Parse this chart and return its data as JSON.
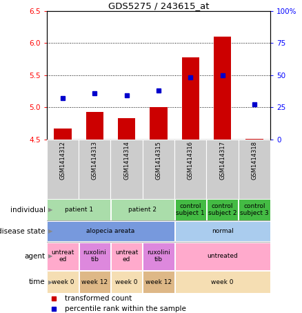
{
  "title": "GDS5275 / 243615_at",
  "samples": [
    "GSM1414312",
    "GSM1414313",
    "GSM1414314",
    "GSM1414315",
    "GSM1414316",
    "GSM1414317",
    "GSM1414318"
  ],
  "bar_values": [
    4.67,
    4.93,
    4.83,
    5.0,
    5.78,
    6.1,
    4.51
  ],
  "dot_values": [
    32,
    36,
    34,
    38,
    48,
    50,
    27
  ],
  "ylim_left": [
    4.5,
    6.5
  ],
  "ylim_right": [
    0,
    100
  ],
  "yticks_left": [
    4.5,
    5.0,
    5.5,
    6.0,
    6.5
  ],
  "yticks_right": [
    0,
    25,
    50,
    75,
    100
  ],
  "bar_color": "#cc0000",
  "dot_color": "#0000cc",
  "bar_bottom": 4.5,
  "grid_lines": [
    5.0,
    5.5,
    6.0
  ],
  "individual_data": [
    {
      "label": "patient 1",
      "span": [
        0,
        2
      ],
      "color": "#aaddaa"
    },
    {
      "label": "patient 2",
      "span": [
        2,
        4
      ],
      "color": "#aaddaa"
    },
    {
      "label": "control\nsubject 1",
      "span": [
        4,
        5
      ],
      "color": "#44bb44"
    },
    {
      "label": "control\nsubject 2",
      "span": [
        5,
        6
      ],
      "color": "#44bb44"
    },
    {
      "label": "control\nsubject 3",
      "span": [
        6,
        7
      ],
      "color": "#44bb44"
    }
  ],
  "disease_data": [
    {
      "label": "alopecia areata",
      "span": [
        0,
        4
      ],
      "color": "#7799dd"
    },
    {
      "label": "normal",
      "span": [
        4,
        7
      ],
      "color": "#aaccee"
    }
  ],
  "agent_data": [
    {
      "label": "untreat\ned",
      "span": [
        0,
        1
      ],
      "color": "#ffaacc"
    },
    {
      "label": "ruxolini\ntib",
      "span": [
        1,
        2
      ],
      "color": "#dd88dd"
    },
    {
      "label": "untreat\ned",
      "span": [
        2,
        3
      ],
      "color": "#ffaacc"
    },
    {
      "label": "ruxolini\ntib",
      "span": [
        3,
        4
      ],
      "color": "#dd88dd"
    },
    {
      "label": "untreated",
      "span": [
        4,
        7
      ],
      "color": "#ffaacc"
    }
  ],
  "time_data": [
    {
      "label": "week 0",
      "span": [
        0,
        1
      ],
      "color": "#f5deb3"
    },
    {
      "label": "week 12",
      "span": [
        1,
        2
      ],
      "color": "#deb887"
    },
    {
      "label": "week 0",
      "span": [
        2,
        3
      ],
      "color": "#f5deb3"
    },
    {
      "label": "week 12",
      "span": [
        3,
        4
      ],
      "color": "#deb887"
    },
    {
      "label": "week 0",
      "span": [
        4,
        7
      ],
      "color": "#f5deb3"
    }
  ],
  "legend_bar_label": "transformed count",
  "legend_dot_label": "percentile rank within the sample",
  "sample_bg_color": "#cccccc",
  "row_label_color": "#444444",
  "arrow_color": "#888888"
}
